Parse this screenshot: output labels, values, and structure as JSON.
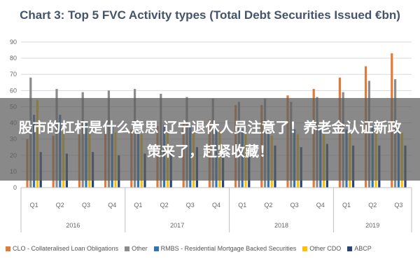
{
  "chart_data": {
    "type": "bar",
    "title": "Chart 3: Top 5 FVC Activity types (Total Debt Securities Issued €bn)",
    "categories": [
      "Q1",
      "Q2",
      "Q3",
      "Q4",
      "Q1",
      "Q2",
      "Q3",
      "Q4",
      "Q1",
      "Q2",
      "Q3",
      "Q4",
      "Q1",
      "Q2",
      "Q3"
    ],
    "groups": [
      {
        "label": "2016",
        "count": 4
      },
      {
        "label": "2017",
        "count": 4
      },
      {
        "label": "2018",
        "count": 4
      },
      {
        "label": "2019",
        "count": 3
      }
    ],
    "ylim": [
      0,
      90
    ],
    "yticks": [
      0,
      10,
      20,
      30,
      40,
      50,
      60,
      70,
      80,
      90
    ],
    "grid": true,
    "legend_position": "bottom",
    "series": [
      {
        "name": "CLO - Collateralised Loan Obligations",
        "color": "#e07b39",
        "values": [
          30,
          32,
          33,
          35,
          36,
          38,
          40,
          42,
          51,
          51,
          57,
          61,
          68,
          75,
          83
        ]
      },
      {
        "name": "Other",
        "color": "#8c8c8c",
        "values": [
          68,
          61,
          59,
          60,
          61,
          58,
          56,
          55,
          53,
          55,
          53,
          56,
          59,
          66,
          67
        ]
      },
      {
        "name": "RMBS - Residential Mortgage Backed Securities",
        "color": "#2e75b6",
        "values": [
          45,
          45,
          40,
          39,
          40,
          39,
          38,
          37,
          36,
          36,
          36,
          36,
          36,
          38,
          37
        ]
      },
      {
        "name": "Other CDO",
        "color": "#ffc000",
        "values": [
          54,
          36,
          34,
          34,
          33,
          34,
          34,
          35,
          33,
          32,
          33,
          33,
          34,
          35,
          34
        ]
      },
      {
        "name": "ABCP",
        "color": "#264478",
        "values": [
          22,
          21,
          22,
          20,
          21,
          23,
          25,
          24,
          25,
          26,
          25,
          27,
          26,
          26,
          26
        ]
      }
    ]
  },
  "overlay": {
    "text": "股市的杠杆是什么意思 辽宁退休人员注意了！养老金认证新政策来了，赶紧收藏！"
  }
}
